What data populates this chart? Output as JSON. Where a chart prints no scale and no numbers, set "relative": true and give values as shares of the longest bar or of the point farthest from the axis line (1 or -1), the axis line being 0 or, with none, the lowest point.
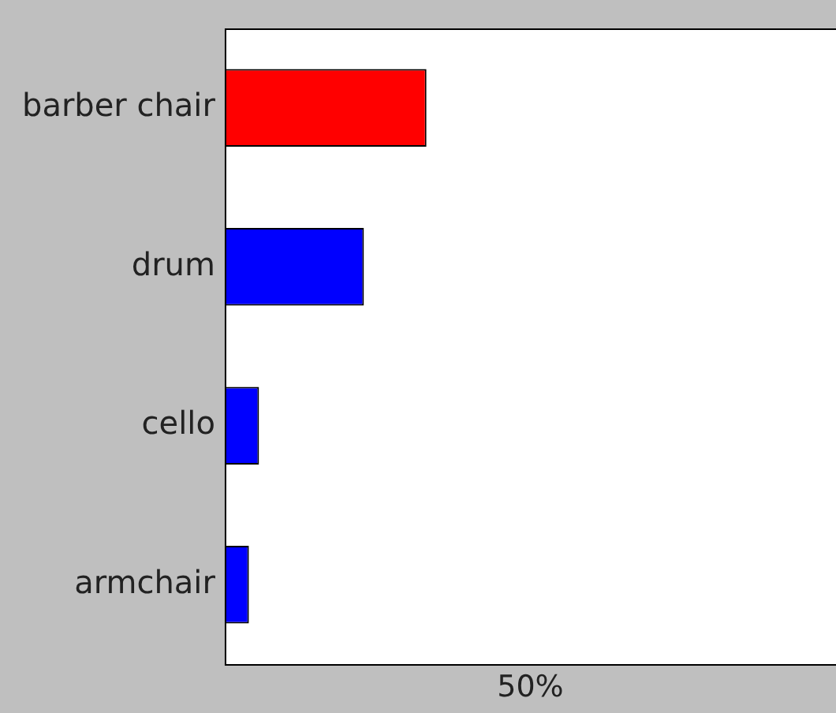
{
  "chart_data": {
    "type": "bar",
    "orientation": "horizontal",
    "relative": true,
    "categories": [
      "barber chair",
      "drum",
      "cello",
      "armchair"
    ],
    "values": [
      1,
      0.69,
      0.17,
      0.12
    ],
    "colors": [
      "#ff0000",
      "#0000ff",
      "#0000ff",
      "#0000ff"
    ],
    "annotations": [
      "50%"
    ]
  }
}
